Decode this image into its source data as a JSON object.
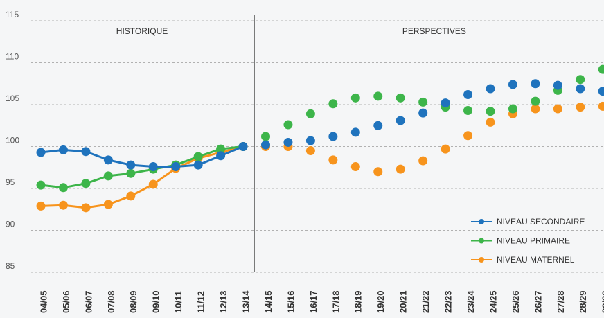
{
  "chart_data": {
    "type": "line",
    "categories": [
      "04/05",
      "05/06",
      "06/07",
      "07/08",
      "08/09",
      "09/10",
      "10/11",
      "11/12",
      "12/13",
      "13/14",
      "14/15",
      "15/16",
      "16/17",
      "17/18",
      "18/19",
      "19/20",
      "20/21",
      "21/22",
      "22/23",
      "23/24",
      "24/25",
      "25/26",
      "26/27",
      "27/28",
      "28/29",
      "29/30"
    ],
    "annotations": [
      {
        "text": "HISTORIQUE",
        "from": "04/05",
        "to": "13/14"
      },
      {
        "text": "PERSPECTIVES",
        "from": "14/15",
        "to": "29/30"
      }
    ],
    "series": [
      {
        "name": "NIVEAU SECONDAIRE",
        "color": "#1f73bd",
        "values": [
          99.3,
          99.6,
          99.4,
          98.4,
          97.8,
          97.6,
          97.6,
          97.8,
          98.9,
          100,
          100.2,
          100.5,
          100.7,
          101.2,
          101.7,
          102.5,
          103.1,
          104.0,
          105.2,
          106.2,
          106.9,
          107.4,
          107.5,
          107.3,
          106.9,
          106.6
        ]
      },
      {
        "name": "NIVEAU PRIMAIRE",
        "color": "#3db54a",
        "values": [
          95.4,
          95.1,
          95.6,
          96.5,
          96.8,
          97.3,
          97.8,
          98.8,
          99.7,
          100,
          101.2,
          102.6,
          103.9,
          105.1,
          105.8,
          106.0,
          105.8,
          105.3,
          104.7,
          104.3,
          104.2,
          104.5,
          105.4,
          106.7,
          108.0,
          109.2
        ]
      },
      {
        "name": "NIVEAU MATERNEL",
        "color": "#f7941d",
        "values": [
          92.9,
          93.0,
          92.7,
          93.1,
          94.1,
          95.5,
          97.4,
          98.6,
          99.3,
          100,
          100,
          100,
          99.5,
          98.4,
          97.6,
          97.0,
          97.3,
          98.3,
          99.7,
          101.3,
          102.9,
          103.9,
          104.5,
          104.5,
          104.7,
          104.8
        ]
      }
    ],
    "ylim": [
      85,
      115
    ],
    "yticks": [
      85,
      90,
      95,
      100,
      105,
      110,
      115
    ],
    "grid": true,
    "legend": "lower right"
  }
}
